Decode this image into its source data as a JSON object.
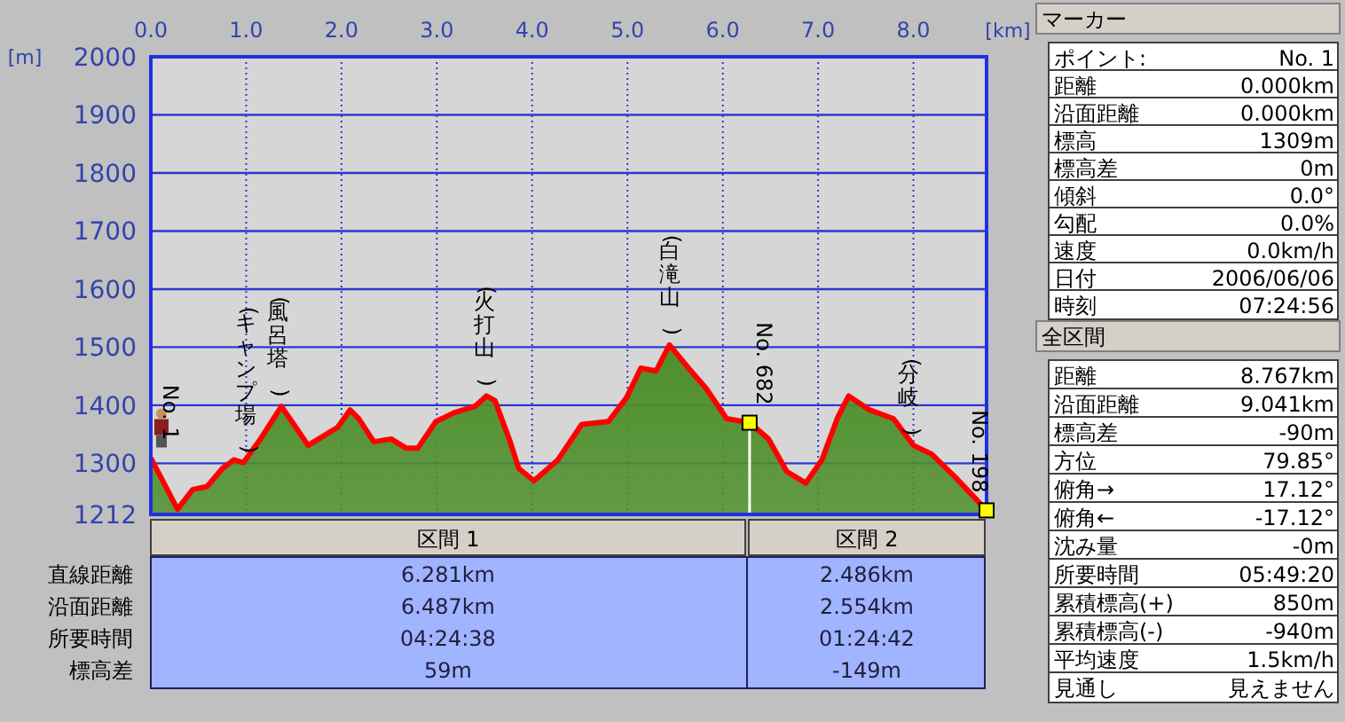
{
  "chart_data": [
    {
      "type": "area",
      "xlabel": "[km]",
      "ylabel": "[m]",
      "xlim": [
        0,
        8.767
      ],
      "ylim": [
        1212,
        2000
      ],
      "xticks": [
        {
          "value": 0,
          "label": "0.0"
        },
        {
          "value": 1,
          "label": "1.0"
        },
        {
          "value": 2,
          "label": "2.0"
        },
        {
          "value": 3,
          "label": "3.0"
        },
        {
          "value": 4,
          "label": "4.0"
        },
        {
          "value": 5,
          "label": "5.0"
        },
        {
          "value": 6,
          "label": "6.0"
        },
        {
          "value": 7,
          "label": "7.0"
        },
        {
          "value": 8,
          "label": "8.0"
        }
      ],
      "yticks": [
        1212,
        1300,
        1400,
        1500,
        1600,
        1700,
        1800,
        1900,
        2000
      ],
      "grid": true,
      "series": [
        {
          "type": "area",
          "color": "#4e8f2c",
          "x": [
            0,
            0.28,
            0.44,
            0.59,
            0.75,
            0.87,
            0.97,
            1.15,
            1.37,
            1.5,
            1.65,
            1.81,
            1.96,
            2.09,
            2.18,
            2.34,
            2.52,
            2.68,
            2.8,
            2.99,
            3.18,
            3.4,
            3.52,
            3.61,
            3.77,
            3.86,
            4.02,
            4.27,
            4.52,
            4.8,
            4.99,
            5.14,
            5.3,
            5.44,
            5.64,
            5.83,
            6.04,
            6.281,
            6.48,
            6.67,
            6.87,
            7.04,
            7.2,
            7.32,
            7.54,
            7.79,
            8.0,
            8.19,
            8.44,
            8.767
          ],
          "values": [
            1309,
            1221,
            1255,
            1260,
            1291,
            1306,
            1301,
            1342,
            1398,
            1367,
            1331,
            1347,
            1362,
            1392,
            1377,
            1337,
            1342,
            1326,
            1326,
            1372,
            1387,
            1398,
            1416,
            1408,
            1337,
            1291,
            1270,
            1306,
            1367,
            1372,
            1413,
            1464,
            1459,
            1504,
            1464,
            1428,
            1377,
            1370,
            1342,
            1286,
            1266,
            1306,
            1377,
            1416,
            1392,
            1377,
            1331,
            1316,
            1276,
            1219
          ]
        },
        {
          "type": "scatter",
          "color": "#ffff00",
          "marker": "square",
          "x": [
            6.281,
            8.767
          ],
          "values": [
            1370,
            1219
          ]
        }
      ],
      "ref_lines": [
        {
          "axis": "x",
          "value": 6.281,
          "color": "#ffffff"
        }
      ],
      "annotations": [
        {
          "text": "No. 1",
          "x": 0,
          "y": 1309
        },
        {
          "text": "(キャンプ場)",
          "x": 1.0,
          "y": 1301
        },
        {
          "text": "(風呂塔)",
          "x": 1.33,
          "y": 1398
        },
        {
          "text": "(火打山)",
          "x": 3.5,
          "y": 1416
        },
        {
          "text": "(白滝山)",
          "x": 5.44,
          "y": 1504
        },
        {
          "text": "No. 682",
          "x": 6.281,
          "y": 1370
        },
        {
          "text": "(分岐)",
          "x": 7.95,
          "y": 1331
        },
        {
          "text": "No. 198",
          "x": 8.767,
          "y": 1219
        }
      ]
    },
    {
      "type": "other",
      "categories": [
        "区間 1",
        "区間 2"
      ],
      "y_categories": [
        "直線距離",
        "沿面距離",
        "所要時間",
        "標高差"
      ],
      "cell_labels": [
        [
          "6.281km",
          "2.486km"
        ],
        [
          "6.487km",
          "2.554km"
        ],
        [
          "04:24:38",
          "01:24:42"
        ],
        [
          "59m",
          "-149m"
        ]
      ]
    },
    {
      "type": "other",
      "title": "マーカー",
      "y_categories": [
        "ポイント:",
        "距離",
        "沿面距離",
        "標高",
        "標高差",
        "傾斜",
        "勾配",
        "速度",
        "日付",
        "時刻"
      ],
      "cell_labels": [
        [
          "No. 1"
        ],
        [
          "0.000km"
        ],
        [
          "0.000km"
        ],
        [
          "1309m"
        ],
        [
          "0m"
        ],
        [
          "0.0°"
        ],
        [
          "0.0%"
        ],
        [
          "0.0km/h"
        ],
        [
          "2006/06/06"
        ],
        [
          "07:24:56"
        ]
      ]
    },
    {
      "type": "other",
      "title": "全区間",
      "y_categories": [
        "距離",
        "沿面距離",
        "標高差",
        "方位",
        "俯角→",
        "俯角←",
        "沈み量",
        "所要時間",
        "累積標高(+)",
        "累積標高(-)",
        "平均速度",
        "見通し"
      ],
      "cell_labels": [
        [
          "8.767km"
        ],
        [
          "9.041km"
        ],
        [
          "-90m"
        ],
        [
          "79.85°"
        ],
        [
          "17.12°"
        ],
        [
          "-17.12°"
        ],
        [
          "-0m"
        ],
        [
          "05:49:20"
        ],
        [
          "850m"
        ],
        [
          "-940m"
        ],
        [
          "1.5km/h"
        ],
        [
          "見えません"
        ]
      ]
    }
  ]
}
